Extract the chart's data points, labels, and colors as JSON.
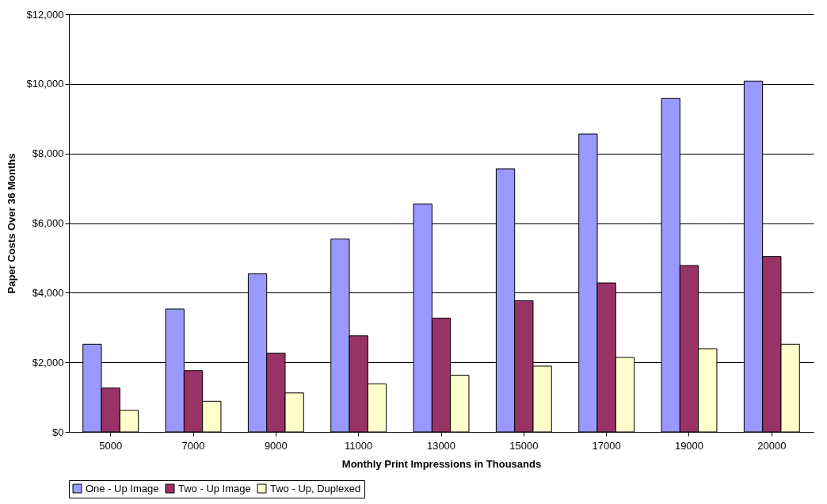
{
  "chart_data": {
    "type": "bar",
    "xlabel": "Monthly Print Impressions in Thousands",
    "ylabel": "Paper Costs Over 36 Months",
    "categories": [
      "5000",
      "7000",
      "9000",
      "11000",
      "13000",
      "15000",
      "17000",
      "19000",
      "20000"
    ],
    "series": [
      {
        "name": "One - Up Image",
        "color": "#9999ff",
        "values": [
          2520,
          3530,
          4540,
          5540,
          6550,
          7560,
          8560,
          9580,
          10080
        ]
      },
      {
        "name": "Two - Up Image",
        "color": "#993366",
        "values": [
          1260,
          1760,
          2260,
          2760,
          3270,
          3770,
          4280,
          4780,
          5040
        ]
      },
      {
        "name": "Two - Up, Duplexed",
        "color": "#ffffcc",
        "values": [
          620,
          880,
          1120,
          1380,
          1630,
          1890,
          2140,
          2390,
          2520
        ]
      }
    ],
    "ylim": [
      0,
      12000
    ],
    "yticks": [
      {
        "value": 0,
        "label": "$0"
      },
      {
        "value": 2000,
        "label": "$2,000"
      },
      {
        "value": 4000,
        "label": "$4,000"
      },
      {
        "value": 6000,
        "label": "$6,000"
      },
      {
        "value": 8000,
        "label": "$8,000"
      },
      {
        "value": 10000,
        "label": "$10,000"
      },
      {
        "value": 12000,
        "label": "$12,000"
      }
    ],
    "grid": "y",
    "legend": "bottom"
  }
}
